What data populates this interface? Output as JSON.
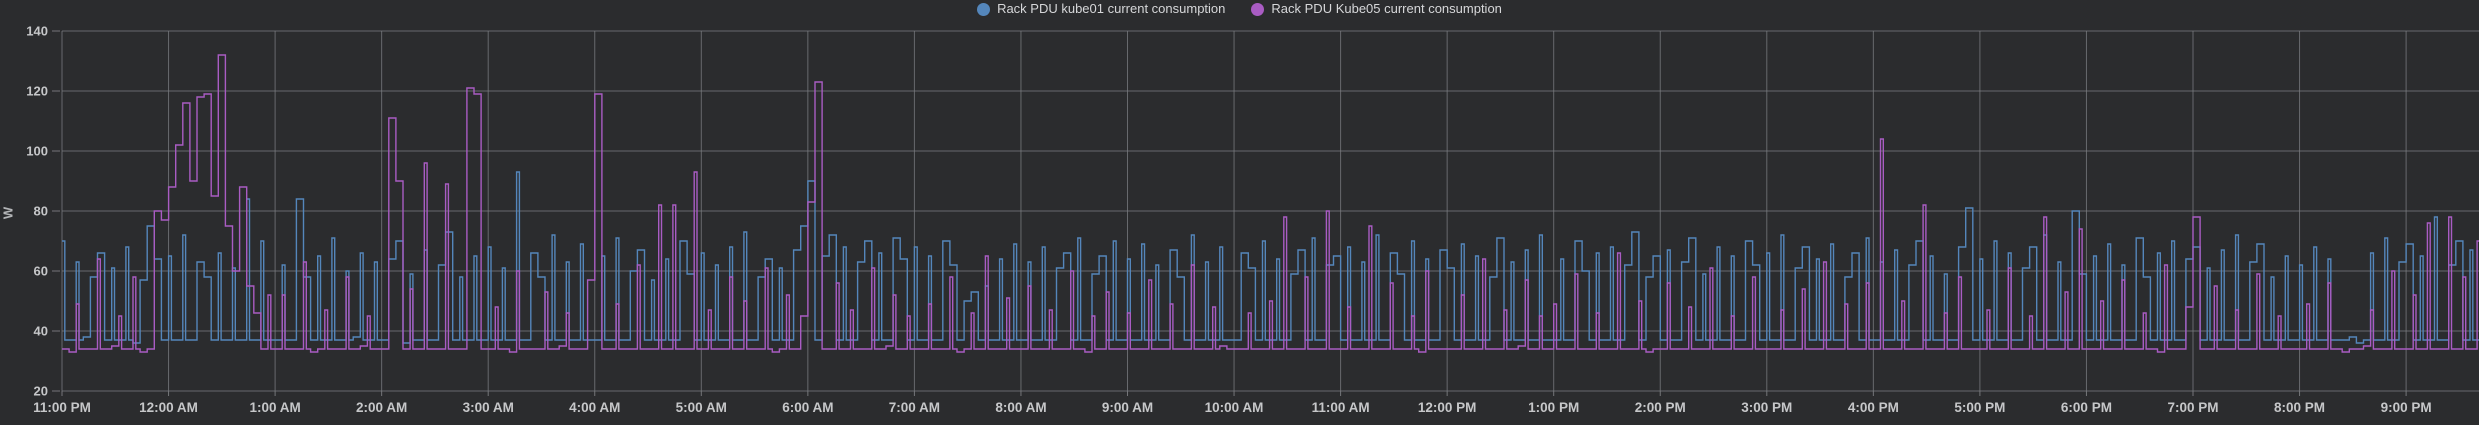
{
  "colors": {
    "background": "#2b2c2e",
    "grid": "#7c7e82",
    "axis_text": "#c6c7c9",
    "legend_text": "#d6d7d9",
    "series_blue": "#5486bb",
    "series_purple": "#a95cc3"
  },
  "chart_data": {
    "type": "line",
    "style": "step",
    "title": "",
    "xlabel": "",
    "ylabel": "W",
    "ylim": [
      20,
      140
    ],
    "yticks": [
      20,
      40,
      60,
      80,
      100,
      120,
      140
    ],
    "grid": true,
    "legend_position": "top-center",
    "x_unit": "time",
    "x_start": "11:00 PM",
    "x_end": "9:45 PM",
    "xtick_labels": [
      "11:00 PM",
      "12:00 AM",
      "1:00 AM",
      "2:00 AM",
      "3:00 AM",
      "4:00 AM",
      "5:00 AM",
      "6:00 AM",
      "7:00 AM",
      "8:00 AM",
      "9:00 AM",
      "10:00 AM",
      "11:00 AM",
      "12:00 PM",
      "1:00 PM",
      "2:00 PM",
      "3:00 PM",
      "4:00 PM",
      "5:00 PM",
      "6:00 PM",
      "7:00 PM",
      "8:00 PM",
      "9:00 PM"
    ],
    "step_min": 4,
    "series": [
      {
        "name": "Rack PDU kube01 current consumption",
        "color": "#5486bb",
        "baseline": 37,
        "values": [
          70,
          37,
          63,
          38,
          58,
          66,
          37,
          61,
          37,
          68,
          36,
          57,
          75,
          64,
          37,
          65,
          37,
          72,
          37,
          63,
          58,
          37,
          66,
          37,
          61,
          37,
          84,
          37,
          70,
          37,
          37,
          62,
          37,
          84,
          58,
          37,
          65,
          37,
          71,
          37,
          60,
          38,
          66,
          37,
          63,
          37,
          64,
          70,
          36,
          59,
          37,
          67,
          37,
          62,
          73,
          37,
          58,
          37,
          65,
          37,
          68,
          37,
          61,
          37,
          93,
          37,
          66,
          58,
          37,
          72,
          37,
          63,
          37,
          69,
          37,
          37,
          65,
          37,
          71,
          37,
          60,
          67,
          37,
          57,
          37,
          64,
          37,
          70,
          59,
          37,
          66,
          37,
          62,
          37,
          68,
          37,
          73,
          37,
          58,
          64,
          37,
          61,
          37,
          67,
          75,
          90,
          37,
          65,
          72,
          37,
          68,
          37,
          63,
          70,
          37,
          66,
          37,
          71,
          64,
          37,
          68,
          37,
          65,
          37,
          70,
          62,
          37,
          50,
          53,
          37,
          55,
          37,
          64,
          37,
          69,
          37,
          63,
          37,
          68,
          37,
          61,
          66,
          37,
          71,
          37,
          59,
          65,
          37,
          70,
          37,
          64,
          37,
          69,
          37,
          62,
          37,
          67,
          58,
          37,
          72,
          37,
          63,
          37,
          68,
          37,
          37,
          66,
          61,
          37,
          70,
          37,
          64,
          37,
          59,
          67,
          37,
          71,
          37,
          62,
          65,
          37,
          68,
          37,
          63,
          37,
          72,
          37,
          66,
          59,
          37,
          70,
          37,
          64,
          37,
          67,
          61,
          37,
          69,
          37,
          65,
          37,
          58,
          71,
          37,
          63,
          37,
          67,
          37,
          72,
          37,
          37,
          64,
          37,
          70,
          60,
          37,
          66,
          37,
          68,
          37,
          62,
          73,
          37,
          58,
          65,
          37,
          67,
          37,
          63,
          71,
          37,
          59,
          37,
          68,
          37,
          65,
          37,
          70,
          62,
          37,
          66,
          37,
          72,
          37,
          61,
          68,
          37,
          64,
          37,
          69,
          37,
          58,
          66,
          37,
          71,
          37,
          63,
          37,
          67,
          37,
          62,
          70,
          37,
          65,
          37,
          59,
          37,
          68,
          81,
          37,
          64,
          37,
          70,
          37,
          66,
          37,
          61,
          68,
          37,
          72,
          37,
          63,
          37,
          80,
          59,
          37,
          65,
          37,
          69,
          37,
          62,
          37,
          71,
          58,
          37,
          66,
          37,
          70,
          37,
          64,
          68,
          37,
          61,
          37,
          67,
          37,
          72,
          37,
          63,
          69,
          37,
          58,
          37,
          65,
          37,
          62,
          37,
          68,
          37,
          64,
          37,
          37,
          38,
          36,
          37,
          66,
          37,
          71,
          37,
          63,
          69,
          37,
          65,
          37,
          78,
          37,
          62,
          70,
          37,
          67,
          37,
          73
        ]
      },
      {
        "name": "Rack PDU Kube05 current consumption",
        "color": "#a95cc3",
        "baseline": 34,
        "values": [
          34,
          33,
          49,
          34,
          34,
          64,
          34,
          35,
          45,
          34,
          58,
          33,
          34,
          80,
          77,
          88,
          102,
          116,
          90,
          118,
          119,
          85,
          132,
          75,
          60,
          88,
          55,
          46,
          34,
          52,
          34,
          52,
          34,
          34,
          63,
          33,
          34,
          47,
          34,
          34,
          58,
          34,
          35,
          45,
          34,
          34,
          111,
          90,
          34,
          54,
          34,
          96,
          34,
          34,
          89,
          34,
          34,
          121,
          119,
          34,
          34,
          48,
          34,
          33,
          60,
          34,
          34,
          34,
          53,
          34,
          35,
          46,
          34,
          34,
          57,
          119,
          34,
          34,
          49,
          34,
          34,
          62,
          34,
          34,
          82,
          34,
          82,
          34,
          34,
          93,
          34,
          47,
          34,
          34,
          58,
          34,
          50,
          34,
          34,
          61,
          33,
          34,
          52,
          34,
          45,
          83,
          123,
          34,
          34,
          56,
          34,
          47,
          34,
          34,
          61,
          34,
          35,
          52,
          34,
          45,
          34,
          34,
          49,
          34,
          34,
          58,
          33,
          34,
          46,
          34,
          65,
          34,
          34,
          51,
          34,
          34,
          55,
          34,
          34,
          47,
          34,
          34,
          60,
          34,
          33,
          45,
          34,
          53,
          34,
          34,
          46,
          34,
          34,
          57,
          34,
          34,
          49,
          34,
          34,
          62,
          34,
          34,
          48,
          35,
          34,
          34,
          34,
          46,
          34,
          34,
          50,
          34,
          78,
          34,
          34,
          58,
          34,
          34,
          80,
          34,
          34,
          48,
          34,
          34,
          75,
          34,
          34,
          56,
          34,
          34,
          45,
          33,
          60,
          34,
          34,
          34,
          34,
          52,
          34,
          34,
          64,
          34,
          34,
          47,
          34,
          35,
          57,
          34,
          45,
          34,
          49,
          34,
          34,
          59,
          34,
          34,
          46,
          34,
          34,
          66,
          34,
          34,
          50,
          33,
          34,
          34,
          56,
          34,
          34,
          48,
          34,
          34,
          61,
          34,
          34,
          45,
          34,
          34,
          58,
          34,
          34,
          34,
          47,
          34,
          34,
          54,
          34,
          34,
          63,
          34,
          34,
          49,
          34,
          34,
          56,
          34,
          104,
          34,
          34,
          50,
          34,
          34,
          82,
          34,
          34,
          46,
          34,
          58,
          34,
          34,
          34,
          47,
          34,
          34,
          61,
          34,
          34,
          45,
          34,
          78,
          34,
          34,
          53,
          34,
          74,
          34,
          34,
          50,
          34,
          34,
          57,
          34,
          34,
          46,
          34,
          33,
          62,
          34,
          34,
          48,
          78,
          34,
          34,
          55,
          34,
          34,
          47,
          34,
          34,
          59,
          34,
          34,
          45,
          34,
          34,
          34,
          49,
          34,
          34,
          56,
          34,
          33,
          34,
          34,
          35,
          47,
          34,
          34,
          60,
          34,
          34,
          52,
          34,
          76,
          34,
          34,
          78,
          34,
          58,
          34,
          70,
          34
        ]
      }
    ]
  }
}
